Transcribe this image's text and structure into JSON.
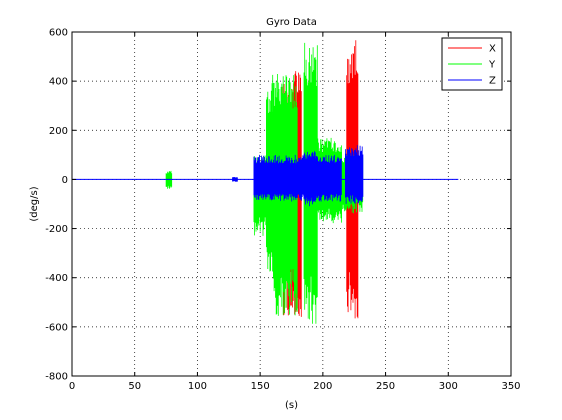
{
  "chart_data": {
    "type": "line",
    "title": "Gyro Data",
    "xlabel": "(s)",
    "ylabel": "(deg/s)",
    "xlim": [
      0,
      350
    ],
    "ylim": [
      -800,
      600
    ],
    "xticks": [
      0,
      50,
      100,
      150,
      200,
      250,
      300,
      350
    ],
    "yticks": [
      -800,
      -600,
      -400,
      -200,
      0,
      200,
      400,
      600
    ],
    "grid": true,
    "grid_style": "dotted",
    "legend_position": "top-right",
    "series": [
      {
        "name": "X",
        "color": "#ff0000",
        "bands": [
          {
            "x0": 168,
            "x1": 180,
            "ymin": -560,
            "ymax": 390
          },
          {
            "x0": 175,
            "x1": 183,
            "ymin": -575,
            "ymax": 450
          },
          {
            "x0": 219,
            "x1": 228,
            "ymin": -575,
            "ymax": 570
          }
        ]
      },
      {
        "name": "Y",
        "color": "#00ff00",
        "bands": [
          {
            "x0": 75,
            "x1": 80,
            "ymin": -40,
            "ymax": 35
          },
          {
            "x0": 145,
            "x1": 165,
            "ymin": -230,
            "ymax": 100
          },
          {
            "x0": 155,
            "x1": 170,
            "ymin": -400,
            "ymax": 400
          },
          {
            "x0": 160,
            "x1": 180,
            "ymin": -560,
            "ymax": 430
          },
          {
            "x0": 185,
            "x1": 196,
            "ymin": -600,
            "ymax": 570
          },
          {
            "x0": 196,
            "x1": 215,
            "ymin": -180,
            "ymax": 170
          },
          {
            "x0": 215,
            "x1": 232,
            "ymin": -140,
            "ymax": 100
          }
        ]
      },
      {
        "name": "Z",
        "color": "#0000ff",
        "bands": [
          {
            "x0": 128,
            "x1": 132,
            "ymin": -10,
            "ymax": 10
          },
          {
            "x0": 145,
            "x1": 215,
            "ymin": -90,
            "ymax": 100
          },
          {
            "x0": 185,
            "x1": 195,
            "ymin": -110,
            "ymax": 120
          },
          {
            "x0": 218,
            "x1": 232,
            "ymin": -100,
            "ymax": 140
          }
        ],
        "baseline_range": [
          0,
          308
        ]
      }
    ]
  }
}
